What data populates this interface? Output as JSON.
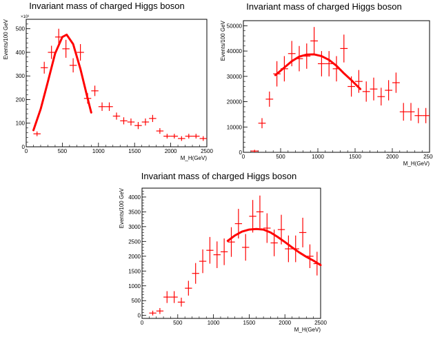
{
  "chart_data": [
    {
      "type": "scatter",
      "title": "Invariant mass of charged Higgs boson",
      "xlabel": "M_H(GeV)",
      "ylabel": "Events/100 GeV",
      "y_multiplier": "×10³",
      "xlim": [
        0,
        2500
      ],
      "ylim": [
        0,
        540
      ],
      "xticks": [
        0,
        500,
        1000,
        1500,
        2000,
        2500
      ],
      "yticks": [
        0,
        100,
        200,
        300,
        400,
        500
      ],
      "series": [
        {
          "kind": "data-with-errors",
          "color": "#ff0000",
          "x_half_width": 50,
          "points": [
            {
              "x": 150,
              "y": 55,
              "err": 10
            },
            {
              "x": 250,
              "y": 335,
              "err": 25
            },
            {
              "x": 350,
              "y": 400,
              "err": 28
            },
            {
              "x": 450,
              "y": 465,
              "err": 35
            },
            {
              "x": 550,
              "y": 415,
              "err": 38
            },
            {
              "x": 650,
              "y": 345,
              "err": 30
            },
            {
              "x": 750,
              "y": 400,
              "err": 35
            },
            {
              "x": 850,
              "y": 205,
              "err": 22
            },
            {
              "x": 950,
              "y": 237,
              "err": 22
            },
            {
              "x": 1050,
              "y": 170,
              "err": 18
            },
            {
              "x": 1150,
              "y": 170,
              "err": 18
            },
            {
              "x": 1250,
              "y": 130,
              "err": 15
            },
            {
              "x": 1350,
              "y": 110,
              "err": 15
            },
            {
              "x": 1450,
              "y": 105,
              "err": 15
            },
            {
              "x": 1550,
              "y": 90,
              "err": 15
            },
            {
              "x": 1650,
              "y": 105,
              "err": 15
            },
            {
              "x": 1750,
              "y": 120,
              "err": 15
            },
            {
              "x": 1850,
              "y": 67,
              "err": 12
            },
            {
              "x": 1950,
              "y": 45,
              "err": 10
            },
            {
              "x": 2050,
              "y": 45,
              "err": 10
            },
            {
              "x": 2150,
              "y": 35,
              "err": 10
            },
            {
              "x": 2250,
              "y": 45,
              "err": 10
            },
            {
              "x": 2350,
              "y": 45,
              "err": 10
            },
            {
              "x": 2450,
              "y": 35,
              "err": 10
            }
          ]
        },
        {
          "kind": "fit",
          "color": "#ff0000",
          "points": [
            [
              100,
              70
            ],
            [
              200,
              160
            ],
            [
              300,
              275
            ],
            [
              400,
              395
            ],
            [
              500,
              465
            ],
            [
              560,
              475
            ],
            [
              650,
              435
            ],
            [
              750,
              330
            ],
            [
              850,
              205
            ],
            [
              900,
              145
            ]
          ]
        }
      ]
    },
    {
      "type": "scatter",
      "title": "Invariant mass of charged Higgs boson",
      "xlabel": "M_H(GeV)",
      "ylabel": "Events/100 GeV",
      "y_multiplier": "",
      "xlim": [
        0,
        2500
      ],
      "ylim": [
        0,
        52000
      ],
      "xticks": [
        0,
        500,
        1000,
        1500,
        2000,
        2500
      ],
      "yticks": [
        0,
        10000,
        20000,
        30000,
        40000,
        50000
      ],
      "series": [
        {
          "kind": "data-with-errors",
          "color": "#ff0000",
          "x_half_width": 50,
          "points": [
            {
              "x": 150,
              "y": 500,
              "err": 500
            },
            {
              "x": 250,
              "y": 11500,
              "err": 2000
            },
            {
              "x": 350,
              "y": 21000,
              "err": 3000
            },
            {
              "x": 450,
              "y": 31000,
              "err": 5000
            },
            {
              "x": 550,
              "y": 33000,
              "err": 5000
            },
            {
              "x": 650,
              "y": 39000,
              "err": 5000
            },
            {
              "x": 750,
              "y": 37000,
              "err": 5000
            },
            {
              "x": 850,
              "y": 38000,
              "err": 5000
            },
            {
              "x": 950,
              "y": 44000,
              "err": 5500
            },
            {
              "x": 1050,
              "y": 35000,
              "err": 5000
            },
            {
              "x": 1150,
              "y": 35000,
              "err": 5000
            },
            {
              "x": 1250,
              "y": 33000,
              "err": 5000
            },
            {
              "x": 1350,
              "y": 41000,
              "err": 5500
            },
            {
              "x": 1450,
              "y": 26000,
              "err": 4000
            },
            {
              "x": 1550,
              "y": 28000,
              "err": 4500
            },
            {
              "x": 1650,
              "y": 24000,
              "err": 4000
            },
            {
              "x": 1750,
              "y": 25000,
              "err": 4500
            },
            {
              "x": 1850,
              "y": 22000,
              "err": 3500
            },
            {
              "x": 1950,
              "y": 24500,
              "err": 4000
            },
            {
              "x": 2050,
              "y": 27500,
              "err": 4000
            },
            {
              "x": 2150,
              "y": 16000,
              "err": 3500
            },
            {
              "x": 2250,
              "y": 16000,
              "err": 3500
            },
            {
              "x": 2350,
              "y": 14500,
              "err": 3000
            },
            {
              "x": 2450,
              "y": 14500,
              "err": 3000
            }
          ]
        },
        {
          "kind": "fit",
          "color": "#ff0000",
          "points": [
            [
              430,
              30500
            ],
            [
              550,
              33500
            ],
            [
              650,
              36000
            ],
            [
              750,
              37800
            ],
            [
              850,
              38600
            ],
            [
              950,
              38700
            ],
            [
              1050,
              38000
            ],
            [
              1150,
              36500
            ],
            [
              1250,
              34200
            ],
            [
              1350,
              31200
            ],
            [
              1450,
              28500
            ],
            [
              1570,
              25000
            ]
          ]
        }
      ]
    },
    {
      "type": "scatter",
      "title": "Invariant mass of charged Higgs boson",
      "xlabel": "M_H(GeV)",
      "ylabel": "Events/100 GeV",
      "y_multiplier": "",
      "xlim": [
        0,
        2500
      ],
      "ylim": [
        -100,
        4300
      ],
      "xticks": [
        0,
        500,
        1000,
        1500,
        2000,
        2500
      ],
      "yticks": [
        0,
        500,
        1000,
        1500,
        2000,
        2500,
        3000,
        3500,
        4000
      ],
      "series": [
        {
          "kind": "data-with-errors",
          "color": "#ff0000",
          "x_half_width": 50,
          "points": [
            {
              "x": 150,
              "y": 80,
              "err": 80
            },
            {
              "x": 250,
              "y": 150,
              "err": 100
            },
            {
              "x": 350,
              "y": 620,
              "err": 200
            },
            {
              "x": 450,
              "y": 620,
              "err": 200
            },
            {
              "x": 550,
              "y": 450,
              "err": 150
            },
            {
              "x": 650,
              "y": 920,
              "err": 250
            },
            {
              "x": 750,
              "y": 1420,
              "err": 350
            },
            {
              "x": 850,
              "y": 1830,
              "err": 400
            },
            {
              "x": 950,
              "y": 2200,
              "err": 450
            },
            {
              "x": 1050,
              "y": 2050,
              "err": 450
            },
            {
              "x": 1150,
              "y": 2150,
              "err": 450
            },
            {
              "x": 1250,
              "y": 2480,
              "err": 500
            },
            {
              "x": 1350,
              "y": 3100,
              "err": 500
            },
            {
              "x": 1450,
              "y": 2300,
              "err": 450
            },
            {
              "x": 1550,
              "y": 3350,
              "err": 550
            },
            {
              "x": 1650,
              "y": 3500,
              "err": 550
            },
            {
              "x": 1750,
              "y": 2950,
              "err": 500
            },
            {
              "x": 1850,
              "y": 2450,
              "err": 450
            },
            {
              "x": 1950,
              "y": 2900,
              "err": 500
            },
            {
              "x": 2050,
              "y": 2250,
              "err": 450
            },
            {
              "x": 2150,
              "y": 2250,
              "err": 450
            },
            {
              "x": 2250,
              "y": 2800,
              "err": 500
            },
            {
              "x": 2350,
              "y": 2000,
              "err": 400
            },
            {
              "x": 2450,
              "y": 1750,
              "err": 400
            }
          ]
        },
        {
          "kind": "fit",
          "color": "#ff0000",
          "points": [
            [
              1200,
              2520
            ],
            [
              1300,
              2700
            ],
            [
              1400,
              2830
            ],
            [
              1500,
              2900
            ],
            [
              1600,
              2920
            ],
            [
              1700,
              2900
            ],
            [
              1800,
              2800
            ],
            [
              1900,
              2650
            ],
            [
              2000,
              2480
            ],
            [
              2100,
              2300
            ],
            [
              2200,
              2130
            ],
            [
              2300,
              1980
            ],
            [
              2400,
              1850
            ],
            [
              2500,
              1700
            ]
          ]
        }
      ]
    }
  ]
}
